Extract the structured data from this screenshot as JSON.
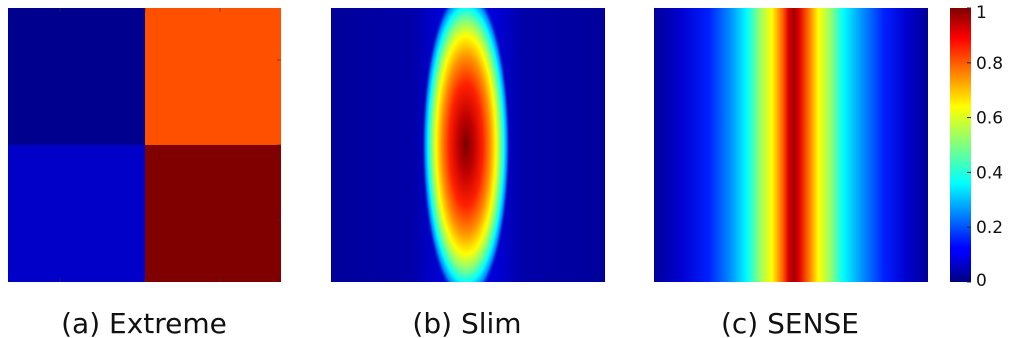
{
  "chart_data": [
    {
      "type": "heatmap",
      "caption": "(a) Extreme",
      "grid": [
        [
          0.02,
          0.85
        ],
        [
          0.07,
          0.98
        ]
      ],
      "colormap": "jet",
      "zlim": [
        0,
        1
      ]
    },
    {
      "type": "heatmap",
      "caption": "(b) Slim",
      "profile": "elliptical gaussian peak centered; narrow horizontally, elongated vertically",
      "peak_value": 1.0,
      "colormap": "jet",
      "zlim": [
        0,
        1
      ]
    },
    {
      "type": "heatmap",
      "caption": "(c) SENSE",
      "profile": "wide vertical band centered; constant along vertical, peak at horizontal center",
      "peak_value": 1.0,
      "colormap": "jet",
      "zlim": [
        0,
        1
      ]
    }
  ],
  "colorbar": {
    "ticks": [
      "0",
      "0.2",
      "0.4",
      "0.6",
      "0.8",
      "1"
    ],
    "tick_values": [
      0,
      0.2,
      0.4,
      0.6,
      0.8,
      1
    ],
    "range": [
      0,
      1
    ],
    "colormap": "jet"
  }
}
